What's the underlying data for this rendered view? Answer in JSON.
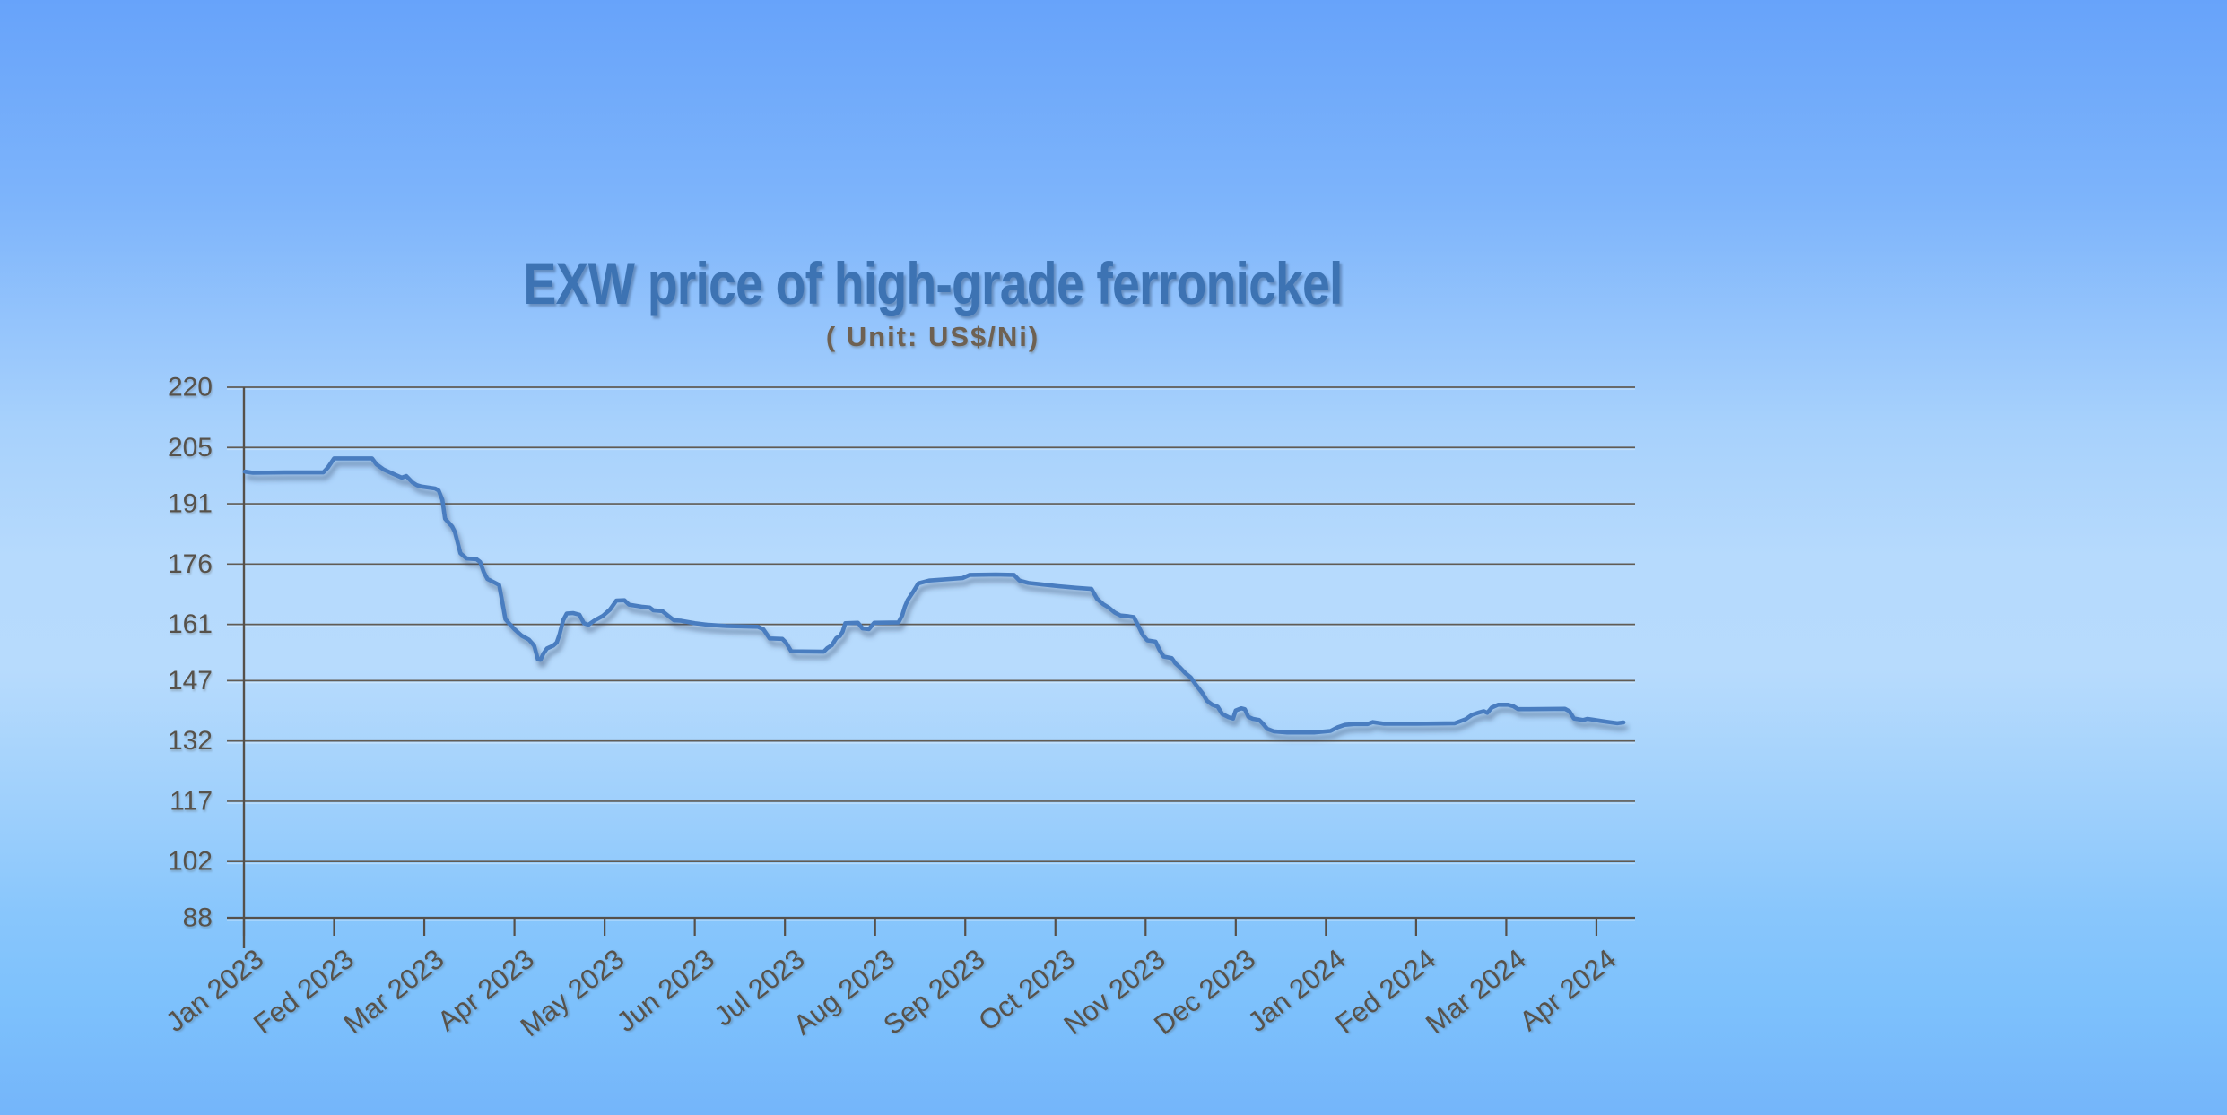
{
  "page": {
    "background_top_color": "#67a3fa",
    "background_middle_color": "#b6dafd",
    "background_bottom_color": "#7dc1fc"
  },
  "header": {
    "title": "EXW price of high-grade ferronickel",
    "subtitle": "( Unit: US$/Ni)",
    "title_color": "#3d73b3",
    "subtitle_color": "#6e6152"
  },
  "chart_style": {
    "line_color": "#4a7dc0",
    "line_shadow_color": "#2d4264",
    "grid_color": "#615c55",
    "axis_color": "#55504a",
    "axis_text_color": "#57524b"
  },
  "chart_data": {
    "type": "line",
    "title": "EXW price of high-grade ferronickel",
    "subtitle": "( Unit: US$/Ni)",
    "unit": "US$/Ni",
    "xlabel": "",
    "ylabel": "",
    "grid": "horizontal",
    "legend": "none",
    "ylim": [
      88,
      220
    ],
    "y_tick_labels": [
      220,
      205,
      191,
      176,
      161,
      147,
      132,
      117,
      102,
      88
    ],
    "x_tick_labels": [
      "Jan 2023",
      "Fed 2023",
      "Mar 2023",
      "Apr 2023",
      "May 2023",
      "Jun 2023",
      "Jul 2023",
      "Aug 2023",
      "Sep 2023",
      "Oct 2023",
      "Nov 2023",
      "Dec 2023",
      "Jan 2024",
      "Fed 2024",
      "Mar 2024",
      "Apr 2024"
    ],
    "x_unit": "months since Jan 2023",
    "series": [
      {
        "name": "EXW price of high-grade ferronickel (US$/Ni)",
        "points": [
          [
            0.01,
            199
          ],
          [
            0.1,
            198.7
          ],
          [
            0.45,
            198.8
          ],
          [
            0.88,
            198.8
          ],
          [
            0.93,
            200
          ],
          [
            1.0,
            202.3
          ],
          [
            1.42,
            202.3
          ],
          [
            1.47,
            200.8
          ],
          [
            1.55,
            199.5
          ],
          [
            1.64,
            198.6
          ],
          [
            1.7,
            198
          ],
          [
            1.75,
            197.5
          ],
          [
            1.8,
            197.9
          ],
          [
            1.87,
            196.3
          ],
          [
            1.92,
            195.6
          ],
          [
            1.97,
            195.3
          ],
          [
            2.12,
            194.8
          ],
          [
            2.16,
            194.3
          ],
          [
            2.2,
            192
          ],
          [
            2.23,
            187.3
          ],
          [
            2.31,
            185.3
          ],
          [
            2.34,
            184
          ],
          [
            2.4,
            178.7
          ],
          [
            2.47,
            177.4
          ],
          [
            2.58,
            177.2
          ],
          [
            2.62,
            176.5
          ],
          [
            2.66,
            174
          ],
          [
            2.7,
            172.3
          ],
          [
            2.77,
            171.5
          ],
          [
            2.83,
            170.8
          ],
          [
            2.87,
            166
          ],
          [
            2.9,
            162.3
          ],
          [
            2.95,
            161
          ],
          [
            3.0,
            159.8
          ],
          [
            3.08,
            158.2
          ],
          [
            3.16,
            157.2
          ],
          [
            3.2,
            156.2
          ],
          [
            3.22,
            155.6
          ],
          [
            3.26,
            152.3
          ],
          [
            3.29,
            152.2
          ],
          [
            3.32,
            153.7
          ],
          [
            3.36,
            155
          ],
          [
            3.43,
            155.7
          ],
          [
            3.47,
            156.5
          ],
          [
            3.5,
            158.5
          ],
          [
            3.54,
            162
          ],
          [
            3.58,
            163.7
          ],
          [
            3.65,
            163.8
          ],
          [
            3.72,
            163.4
          ],
          [
            3.77,
            161.3
          ],
          [
            3.82,
            160.9
          ],
          [
            3.89,
            162
          ],
          [
            3.98,
            163.1
          ],
          [
            4.06,
            164.7
          ],
          [
            4.13,
            166.9
          ],
          [
            4.22,
            167
          ],
          [
            4.27,
            165.9
          ],
          [
            4.41,
            165.4
          ],
          [
            4.5,
            165.2
          ],
          [
            4.54,
            164.5
          ],
          [
            4.64,
            164.3
          ],
          [
            4.7,
            163.2
          ],
          [
            4.77,
            162
          ],
          [
            4.85,
            161.9
          ],
          [
            5.0,
            161.3
          ],
          [
            5.15,
            160.9
          ],
          [
            5.35,
            160.6
          ],
          [
            5.7,
            160.4
          ],
          [
            5.76,
            159.8
          ],
          [
            5.83,
            157.5
          ],
          [
            5.97,
            157.4
          ],
          [
            6.01,
            156.5
          ],
          [
            6.07,
            154.3
          ],
          [
            6.43,
            154.2
          ],
          [
            6.47,
            155.1
          ],
          [
            6.52,
            155.8
          ],
          [
            6.57,
            157.6
          ],
          [
            6.61,
            158.1
          ],
          [
            6.64,
            159.2
          ],
          [
            6.67,
            161.3
          ],
          [
            6.81,
            161.4
          ],
          [
            6.86,
            160
          ],
          [
            6.93,
            159.8
          ],
          [
            6.99,
            161.4
          ],
          [
            7.26,
            161.5
          ],
          [
            7.3,
            163.2
          ],
          [
            7.33,
            165.4
          ],
          [
            7.36,
            167
          ],
          [
            7.42,
            169
          ],
          [
            7.48,
            171.2
          ],
          [
            7.6,
            171.9
          ],
          [
            7.97,
            172.5
          ],
          [
            8.05,
            173.3
          ],
          [
            8.34,
            173.4
          ],
          [
            8.54,
            173.3
          ],
          [
            8.6,
            171.9
          ],
          [
            8.7,
            171.3
          ],
          [
            8.83,
            171
          ],
          [
            9.03,
            170.5
          ],
          [
            9.23,
            170.1
          ],
          [
            9.4,
            169.8
          ],
          [
            9.46,
            167.4
          ],
          [
            9.53,
            166
          ],
          [
            9.59,
            165.2
          ],
          [
            9.66,
            163.9
          ],
          [
            9.72,
            163.2
          ],
          [
            9.81,
            163
          ],
          [
            9.87,
            162.8
          ],
          [
            9.91,
            161
          ],
          [
            9.97,
            158.3
          ],
          [
            10.02,
            157
          ],
          [
            10.11,
            156.7
          ],
          [
            10.15,
            154.8
          ],
          [
            10.2,
            153
          ],
          [
            10.29,
            152.6
          ],
          [
            10.33,
            151.3
          ],
          [
            10.38,
            150.3
          ],
          [
            10.44,
            148.9
          ],
          [
            10.5,
            147.8
          ],
          [
            10.56,
            145.9
          ],
          [
            10.63,
            143.9
          ],
          [
            10.68,
            142
          ],
          [
            10.74,
            141
          ],
          [
            10.8,
            140.5
          ],
          [
            10.85,
            138.7
          ],
          [
            10.92,
            137.9
          ],
          [
            10.97,
            137.6
          ],
          [
            11.0,
            139.6
          ],
          [
            11.06,
            140.1
          ],
          [
            11.1,
            139.9
          ],
          [
            11.14,
            138
          ],
          [
            11.19,
            137.5
          ],
          [
            11.26,
            137.2
          ],
          [
            11.3,
            136.3
          ],
          [
            11.35,
            135
          ],
          [
            11.42,
            134.4
          ],
          [
            11.57,
            134.1
          ],
          [
            11.87,
            134.1
          ],
          [
            12.05,
            134.5
          ],
          [
            12.13,
            135.4
          ],
          [
            12.21,
            136
          ],
          [
            12.31,
            136.2
          ],
          [
            12.46,
            136.2
          ],
          [
            12.52,
            136.7
          ],
          [
            12.64,
            136.3
          ],
          [
            13.01,
            136.3
          ],
          [
            13.43,
            136.4
          ],
          [
            13.55,
            137.4
          ],
          [
            13.62,
            138.5
          ],
          [
            13.7,
            139.1
          ],
          [
            13.75,
            139.4
          ],
          [
            13.79,
            139
          ],
          [
            13.84,
            140.3
          ],
          [
            13.91,
            141
          ],
          [
            14.02,
            141
          ],
          [
            14.08,
            140.6
          ],
          [
            14.13,
            139.9
          ],
          [
            14.25,
            139.9
          ],
          [
            14.65,
            140
          ],
          [
            14.7,
            139.4
          ],
          [
            14.75,
            137.6
          ],
          [
            14.85,
            137.2
          ],
          [
            14.9,
            137.5
          ],
          [
            14.96,
            137.3
          ],
          [
            15.04,
            137
          ],
          [
            15.14,
            136.7
          ],
          [
            15.23,
            136.4
          ],
          [
            15.3,
            136.6
          ]
        ]
      }
    ]
  }
}
